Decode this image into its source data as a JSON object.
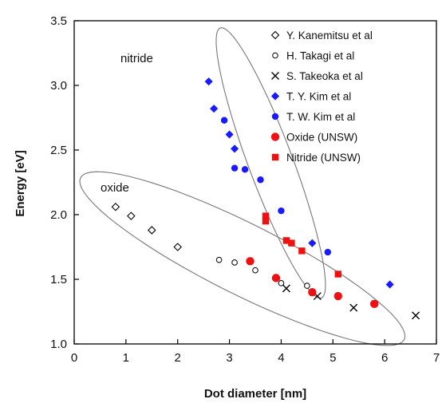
{
  "chart_data": {
    "type": "scatter",
    "xlabel": "Dot diameter [nm]",
    "ylabel": "Energy [eV]",
    "xlim": [
      0,
      7
    ],
    "ylim": [
      1.0,
      3.5
    ],
    "xticks": [
      "0",
      "1",
      "2",
      "3",
      "4",
      "5",
      "6",
      "7"
    ],
    "yticks": [
      "1.0",
      "1.5",
      "2.0",
      "2.5",
      "3.0",
      "3.5"
    ],
    "grid": false,
    "legend_position": "top-right",
    "series": [
      {
        "name": "Y. Kanemitsu et al",
        "marker": "diamond-open",
        "color": "#000000",
        "points": [
          [
            0.8,
            2.06
          ],
          [
            1.1,
            1.99
          ],
          [
            1.5,
            1.88
          ],
          [
            2.0,
            1.75
          ]
        ]
      },
      {
        "name": "H. Takagi et al",
        "marker": "circle-open",
        "color": "#000000",
        "points": [
          [
            2.8,
            1.65
          ],
          [
            3.1,
            1.63
          ],
          [
            3.5,
            1.57
          ],
          [
            4.0,
            1.47
          ],
          [
            4.5,
            1.45
          ]
        ]
      },
      {
        "name": "S. Takeoka et al",
        "marker": "cross",
        "color": "#000000",
        "points": [
          [
            4.1,
            1.43
          ],
          [
            4.7,
            1.37
          ],
          [
            5.4,
            1.28
          ],
          [
            6.6,
            1.22
          ]
        ]
      },
      {
        "name": "T. Y. Kim et al",
        "marker": "diamond-filled",
        "color": "#1a1aff",
        "points": [
          [
            2.6,
            3.03
          ],
          [
            2.7,
            2.82
          ],
          [
            3.0,
            2.62
          ],
          [
            3.1,
            2.51
          ],
          [
            4.6,
            1.78
          ],
          [
            6.1,
            1.46
          ]
        ]
      },
      {
        "name": "T. W. Kim et al",
        "marker": "circle-filled",
        "color": "#1a1aff",
        "points": [
          [
            2.9,
            2.73
          ],
          [
            3.1,
            2.36
          ],
          [
            3.3,
            2.35
          ],
          [
            3.6,
            2.27
          ],
          [
            4.0,
            2.03
          ],
          [
            4.9,
            1.71
          ]
        ]
      },
      {
        "name": "Oxide (UNSW)",
        "marker": "circle-filled",
        "color": "#ee1111",
        "points": [
          [
            3.4,
            1.64
          ],
          [
            3.9,
            1.51
          ],
          [
            4.6,
            1.4
          ],
          [
            5.1,
            1.37
          ],
          [
            5.8,
            1.31
          ]
        ]
      },
      {
        "name": "Nitride (UNSW)",
        "marker": "square-filled",
        "color": "#ee1111",
        "points": [
          [
            3.7,
            1.99
          ],
          [
            3.7,
            1.95
          ],
          [
            4.1,
            1.8
          ],
          [
            4.2,
            1.78
          ],
          [
            4.4,
            1.72
          ],
          [
            5.1,
            1.54
          ]
        ]
      }
    ],
    "annotations": [
      {
        "text": "nitride",
        "x": 1.0,
        "y": 3.1
      },
      {
        "text": "oxide",
        "x": 0.5,
        "y": 2.16
      }
    ],
    "regions": [
      {
        "name": "nitride-region",
        "cx": 3.8,
        "cy": 2.4,
        "rx": 1.45,
        "ry": 0.33,
        "angle": 0.78
      },
      {
        "name": "oxide-region",
        "cx": 3.25,
        "cy": 1.66,
        "rx": 3.2,
        "ry": 0.3,
        "angle": 0.19
      }
    ]
  }
}
